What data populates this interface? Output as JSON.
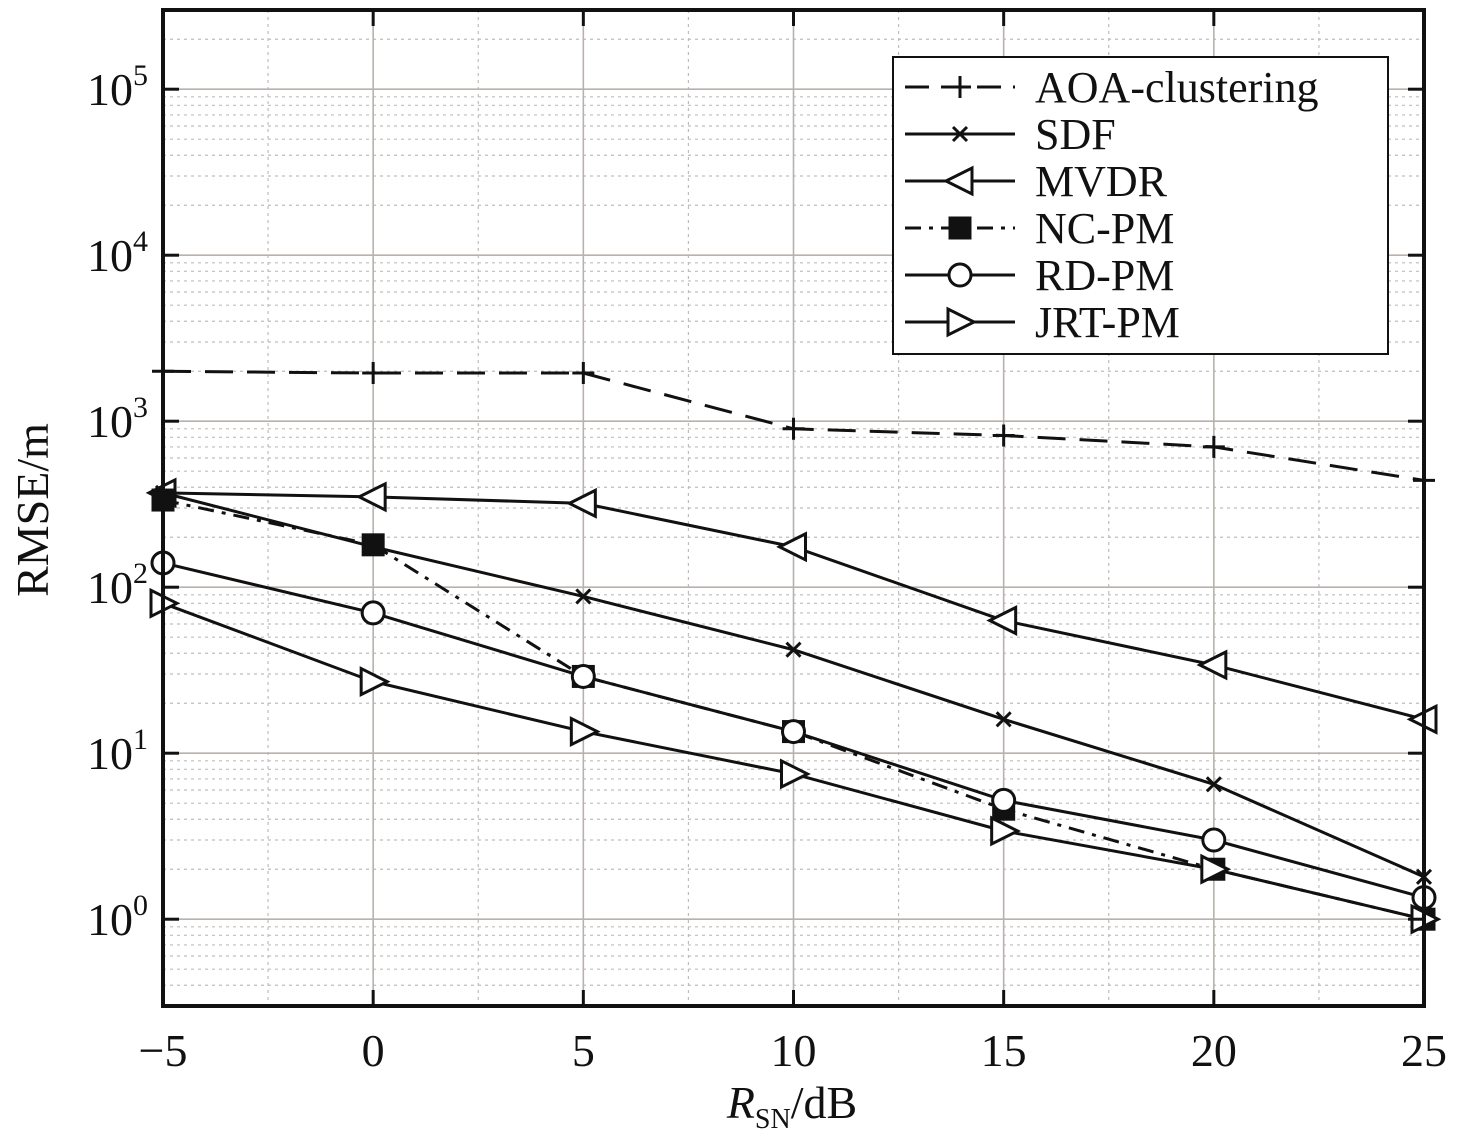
{
  "chart_data": {
    "type": "line",
    "xlabel_main": "R",
    "xlabel_sub": "SN",
    "xlabel_rest": "/dB",
    "ylabel": "RMSE/m",
    "x_scale": "linear",
    "y_scale": "log",
    "xlim": [
      -5,
      25
    ],
    "ylim": [
      0.3,
      300000
    ],
    "x_ticks": [
      -5,
      0,
      5,
      10,
      15,
      20,
      25
    ],
    "x_tick_labels": [
      "−5",
      "0",
      "5",
      "10",
      "15",
      "20",
      "25"
    ],
    "y_ticks": [
      1,
      10,
      100,
      1000,
      10000,
      100000
    ],
    "y_tick_labels": [
      {
        "base": "10",
        "exp": "0"
      },
      {
        "base": "10",
        "exp": "1"
      },
      {
        "base": "10",
        "exp": "2"
      },
      {
        "base": "10",
        "exp": "3"
      },
      {
        "base": "10",
        "exp": "4"
      },
      {
        "base": "10",
        "exp": "5"
      }
    ],
    "grid": true,
    "minor_grid": true,
    "legend_position": "top-right",
    "x": [
      -5,
      0,
      5,
      10,
      15,
      20,
      25
    ],
    "series": [
      {
        "name": "AOA-clustering",
        "line": "dashed",
        "marker": "plus",
        "values": [
          2000,
          1950,
          1950,
          900,
          820,
          700,
          440
        ]
      },
      {
        "name": "SDF",
        "line": "solid",
        "marker": "x",
        "values": [
          370,
          175,
          88,
          42,
          16,
          6.5,
          1.8
        ]
      },
      {
        "name": "MVDR",
        "line": "solid",
        "marker": "triangle-left",
        "values": [
          370,
          350,
          320,
          175,
          63,
          34,
          16
        ]
      },
      {
        "name": "NC-PM",
        "line": "dashdot",
        "marker": "square-filled",
        "values": [
          335,
          180,
          29,
          13.5,
          4.6,
          2.0,
          1.0
        ]
      },
      {
        "name": "RD-PM",
        "line": "solid",
        "marker": "circle",
        "values": [
          140,
          70,
          29,
          13.5,
          5.2,
          3.0,
          1.35
        ]
      },
      {
        "name": "JRT-PM",
        "line": "solid",
        "marker": "triangle-right",
        "values": [
          80,
          27,
          13.5,
          7.5,
          3.4,
          2.0,
          1.0
        ]
      }
    ]
  }
}
